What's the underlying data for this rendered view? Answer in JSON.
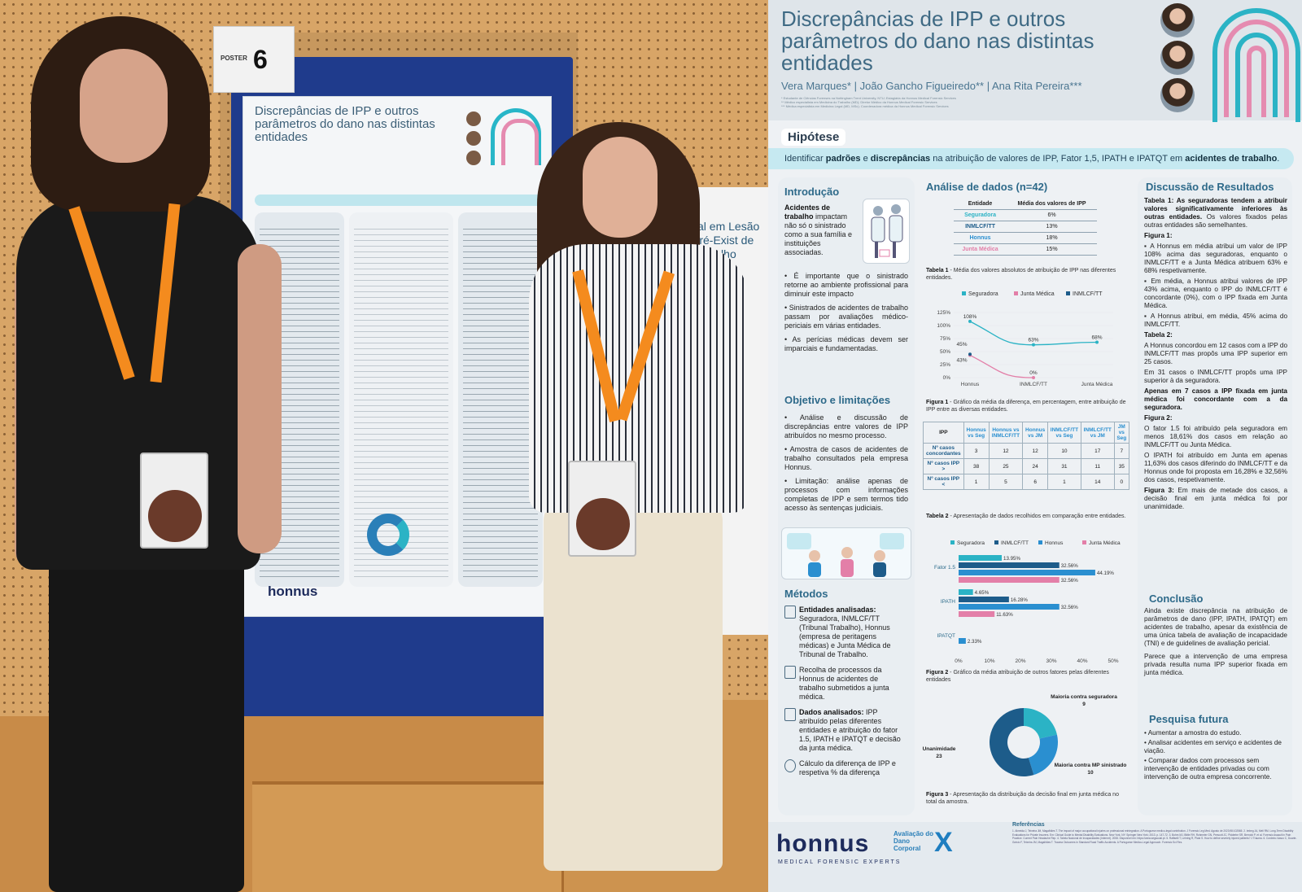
{
  "photo": {
    "poster_tag_label": "POSTER",
    "poster_tag_number": "6",
    "mini_title": "Discrepâncias de IPP e outros parâmetros do dano nas distintas entidades",
    "mini_brand": "honnus",
    "right_board_text": "sal em Lesão Pré-Exist de Trabalho"
  },
  "poster": {
    "title": "Discrepâncias de IPP e outros parâmetros do dano nas distintas entidades",
    "authors": "Vera Marques* | João Gancho Figueiredo** | Ana Rita Pereira***",
    "affiliations": [
      "* Estudante de Ciências Forenses na Nottingham Trent University, NTU; Estagiária da Honnus Medical Forensic Services",
      "** Médico especialista em Medicina do Trabalho (MD); Diretor Médico da Honnus Medical Forensic Services",
      "*** Médica especialista em Medicina Legal (MD, MSc); Coordenadora médica da Honnus Medical Forensic Services"
    ],
    "hipotese": {
      "heading": "Hipótese",
      "pre": "Identificar ",
      "b1": "padrões",
      "mid1": " e ",
      "b2": "discrepâncias",
      "mid2": " na atribuição de valores de IPP, Fator 1,5, IPATH e IPATQT em ",
      "b3": "acidentes de trabalho",
      "post": "."
    },
    "introducao": {
      "heading": "Introdução",
      "lead_bold": "Acidentes de trabalho",
      "lead_rest": " impactam não só o sinistrado como a sua família e instituições associadas.",
      "bullets": [
        "• É importante que o sinistrado retorne ao ambiente profissional para diminuir este impacto",
        "• Sinistrados de acidentes de trabalho passam por avaliações médico-periciais em várias entidades.",
        "• As perícias médicas devem ser imparciais e fundamentadas."
      ]
    },
    "objetivo": {
      "heading": "Objetivo e limitações",
      "bullets": [
        "• Análise e discussão de discrepâncias entre valores de IPP atribuídos no mesmo processo.",
        "• Amostra de casos de acidentes de trabalho consultados pela empresa Honnus.",
        "• Limitação: análise apenas de processos com informações completas de IPP e sem termos tido acesso às sentenças judiciais."
      ]
    },
    "metodos": {
      "heading": "Métodos",
      "items": [
        {
          "bold": "Entidades analisadas:",
          "rest": " Seguradora, INMLCF/TT (Tribunal Trabalho), Honnus (empresa de peritagens médicas) e Junta Médica de Tribunal de Trabalho."
        },
        {
          "bold": "",
          "rest": "Recolha de processos da Honnus de acidentes de trabalho submetidos a junta médica."
        },
        {
          "bold": "Dados analisados:",
          "rest": " IPP atribuído pelas diferentes entidades e atribuição do fator 1.5, IPATH e IPATQT e decisão da junta médica."
        },
        {
          "bold": "",
          "rest": "Cálculo da diferença de IPP e respetiva % da diferença"
        }
      ]
    },
    "analise": {
      "heading": "Análise de dados (n=42)",
      "table1": {
        "headers": [
          "Entidade",
          "Média dos valores de IPP"
        ],
        "rows": [
          {
            "entity": "Seguradora",
            "value": "6%",
            "color": "#2bb3c5"
          },
          {
            "entity": "INMLCF/TT",
            "value": "13%",
            "color": "#1d5c8a"
          },
          {
            "entity": "Honnus",
            "value": "18%",
            "color": "#2a8fd0"
          },
          {
            "entity": "Junta Médica",
            "value": "15%",
            "color": "#e37fa8"
          }
        ],
        "caption_bold": "Tabela 1",
        "caption_rest": " - Média dos valores absolutos de atribuição de IPP nas diferentes entidades."
      },
      "fig1_caption_bold": "Figura 1",
      "fig1_caption_rest": " - Gráfico da média da diferença, em percentagem, entre atribuição de IPP entre as diversas entidades.",
      "table2": {
        "headers": [
          "IPP",
          "Honnus vs Seg",
          "Honnus vs INMLCF/TT",
          "Honnus vs JM",
          "INMLCF/TT vs Seg",
          "INMLCF/TT vs JM",
          "JM vs Seg"
        ],
        "rows": [
          {
            "label": "Nº casos concordantes",
            "cells": [
              "3",
              "12",
              "12",
              "10",
              "17",
              "7"
            ]
          },
          {
            "label": "Nº casos IPP >",
            "cells": [
              "38",
              "25",
              "24",
              "31",
              "11",
              "35"
            ]
          },
          {
            "label": "Nº casos IPP <",
            "cells": [
              "1",
              "5",
              "6",
              "1",
              "14",
              "0"
            ]
          }
        ],
        "caption_bold": "Tabela 2",
        "caption_rest": " - Apresentação de dados recolhidos em comparação entre entidades."
      },
      "fig2_caption_bold": "Figura 2",
      "fig2_caption_rest": " - Gráfico da média atribuição de outros fatores pelas diferentes entidades",
      "fig3_caption_bold": "Figura 3",
      "fig3_caption_rest": " - Apresentação da distribuição da decisão final em junta médica no total da amostra."
    },
    "discussao": {
      "heading": "Discussão de Resultados",
      "paras": [
        {
          "b": "Tabela 1: As seguradoras tendem a atribuir valores significativamente inferiores às outras entidades.",
          "r": " Os valores fixados pelas outras entidades são semelhantes."
        },
        {
          "b": "Figura 1:",
          "r": ""
        },
        {
          "b": "",
          "r": "▪ A Honnus em média atribui um valor de IPP 108% acima das seguradoras, enquanto o INMLCF/TT e a Junta Médica atribuem 63% e 68% respetivamente."
        },
        {
          "b": "",
          "r": "▪ Em média, a Honnus atribui valores de IPP 43% acima, enquanto o IPP do INMLCF/TT é concordante (0%), com o IPP fixada em Junta Médica."
        },
        {
          "b": "",
          "r": "▪ A Honnus atribui, em média, 45% acima do INMLCF/TT."
        },
        {
          "b": "Tabela 2:",
          "r": ""
        },
        {
          "b": "",
          "r": "A Honnus concordou em 12 casos com a IPP do INMLCF/TT mas propôs uma IPP superior em 25 casos."
        },
        {
          "b": "",
          "r": "Em 31 casos o INMLCF/TT propôs uma IPP superior à da seguradora."
        },
        {
          "b": "Apenas em 7 casos a IPP fixada em junta médica foi concordante com a da seguradora.",
          "r": ""
        },
        {
          "b": "Figura 2:",
          "r": ""
        },
        {
          "b": "",
          "r": "O fator 1.5 foi atribuído pela seguradora em menos 18,61% dos casos em relação ao INMLCF/TT ou Junta Médica."
        },
        {
          "b": "",
          "r": "O IPATH foi atribuído em Junta em apenas 11,63% dos casos diferindo do INMLCF/TT e da Honnus onde foi proposta em 16,28% e 32,56% dos casos, respetivamente."
        },
        {
          "b": "Figura 3:",
          "r": " Em mais de metade dos casos, a decisão final em junta médica foi por unanimidade."
        }
      ]
    },
    "conclusao": {
      "heading": "Conclusão",
      "text1": "Ainda existe discrepância na atribuição de parâmetros de dano (IPP, IPATH, IPATQT) em acidentes de trabalho, apesar da existência de uma única tabela de avaliação de incapacidade (TNI) e de guidelines de avaliação pericial.",
      "text2": "Parece que a intervenção de uma empresa privada resulta numa IPP superior fixada em junta médica."
    },
    "pesquisa": {
      "heading": "Pesquisa futura",
      "bullets": [
        "• Aumentar a amostra do estudo.",
        "• Analisar acidentes em serviço e acidentes de viação.",
        "• Comparar dados com processos sem intervenção de entidades privadas ou com intervenção de outra empresa concorrente."
      ]
    },
    "footer": {
      "brand": "honnus",
      "brand_sub": "MEDICAL FORENSIC EXPERTS",
      "adc": "Avaliação do Dano Corporal",
      "adc_x": "X",
      "refs_heading": "Referências",
      "refs": "1. Almeida J, Teixeira JM, Magalhães T. The impact of major occupational injuries on professional reintegration. A Portuguese medico-legal contribution. J Forensic Leg Med. Agosto de 2023;98:102565. 2. Imbeg JA, Mell RM. Long-Term Disability Evaluations for Private Insurers. Em: Clinical Guide to Mental Disability Evaluations. New York, NY: Springer New York; 2013. p. 147-72. 3. Bohm MJ, Bittle RH, Rohmeier GN, Prescott JC, Pidderbe SR, Bernold P, et al. Forensic Assault in Pain Practice. Current Pain Headache Rep. 4. Tabela Nacional de Incapacidades (Internet). 2008. Disponível em: https://www.segsocial.pt. 5. Raffaelli T, Lehring R, Platz S. How to define severely injured patients? J Trauma. 6. Cordeiro-Vasco C, Duarte-Grávio F, Teixeira JM, Magalhães T. Trauma Outcomes in Standard Road Traffic Accidents. A Portuguese Medico-Legal Approach. Forensic Sci Res."
    }
  },
  "chart_data": [
    {
      "type": "line",
      "title": "",
      "categories": [
        "Honnus",
        "INMLCF/TT",
        "Junta Médica"
      ],
      "ylim": [
        0,
        125
      ],
      "yticks": [
        "0%",
        "25%",
        "50%",
        "75%",
        "100%",
        "125%"
      ],
      "legend": "top",
      "series": [
        {
          "name": "Seguradora",
          "color": "#2bb3c5",
          "values": [
            108,
            63,
            68
          ],
          "labels": [
            "108%",
            "63%",
            "68%"
          ]
        },
        {
          "name": "Junta Médica",
          "color": "#e37fa8",
          "values": [
            43,
            0,
            null
          ],
          "labels": [
            "43%",
            "0%",
            ""
          ]
        },
        {
          "name": "INMLCF/TT",
          "color": "#1d5c8a",
          "values": [
            45,
            null,
            null
          ],
          "labels": [
            "45%",
            "",
            ""
          ]
        }
      ]
    },
    {
      "type": "bar",
      "orientation": "horizontal",
      "categories": [
        "Fator 1.5",
        "IPATH",
        "IPATQT"
      ],
      "xlim": [
        0,
        50
      ],
      "xticks": [
        "0%",
        "10%",
        "20%",
        "30%",
        "40%",
        "50%"
      ],
      "legend": "top",
      "series": [
        {
          "name": "Seguradora",
          "color": "#2bb3c5",
          "values": [
            13.95,
            4.65,
            0
          ]
        },
        {
          "name": "INMLCF/TT",
          "color": "#1d5c8a",
          "values": [
            32.56,
            16.28,
            0
          ]
        },
        {
          "name": "Honnus",
          "color": "#2a8fd0",
          "values": [
            44.19,
            32.56,
            2.33
          ]
        },
        {
          "name": "Junta Médica",
          "color": "#e37fa8",
          "values": [
            32.56,
            11.63,
            0
          ]
        }
      ],
      "labels": [
        [
          "13.95%",
          "32.56%",
          "44.19%",
          "32.56%"
        ],
        [
          "4.65%",
          "16.28%",
          "32.56%",
          "11.63%"
        ],
        [
          "",
          "",
          "2.33%",
          ""
        ]
      ]
    },
    {
      "type": "pie",
      "slices": [
        {
          "label": "Maioria contra seguradora",
          "value": 9,
          "color": "#2bb3c5"
        },
        {
          "label": "Maioria contra MP sinistrado",
          "value": 10,
          "color": "#2a8fd0"
        },
        {
          "label": "Unanimidade",
          "value": 23,
          "color": "#1d5c8a"
        }
      ]
    }
  ]
}
